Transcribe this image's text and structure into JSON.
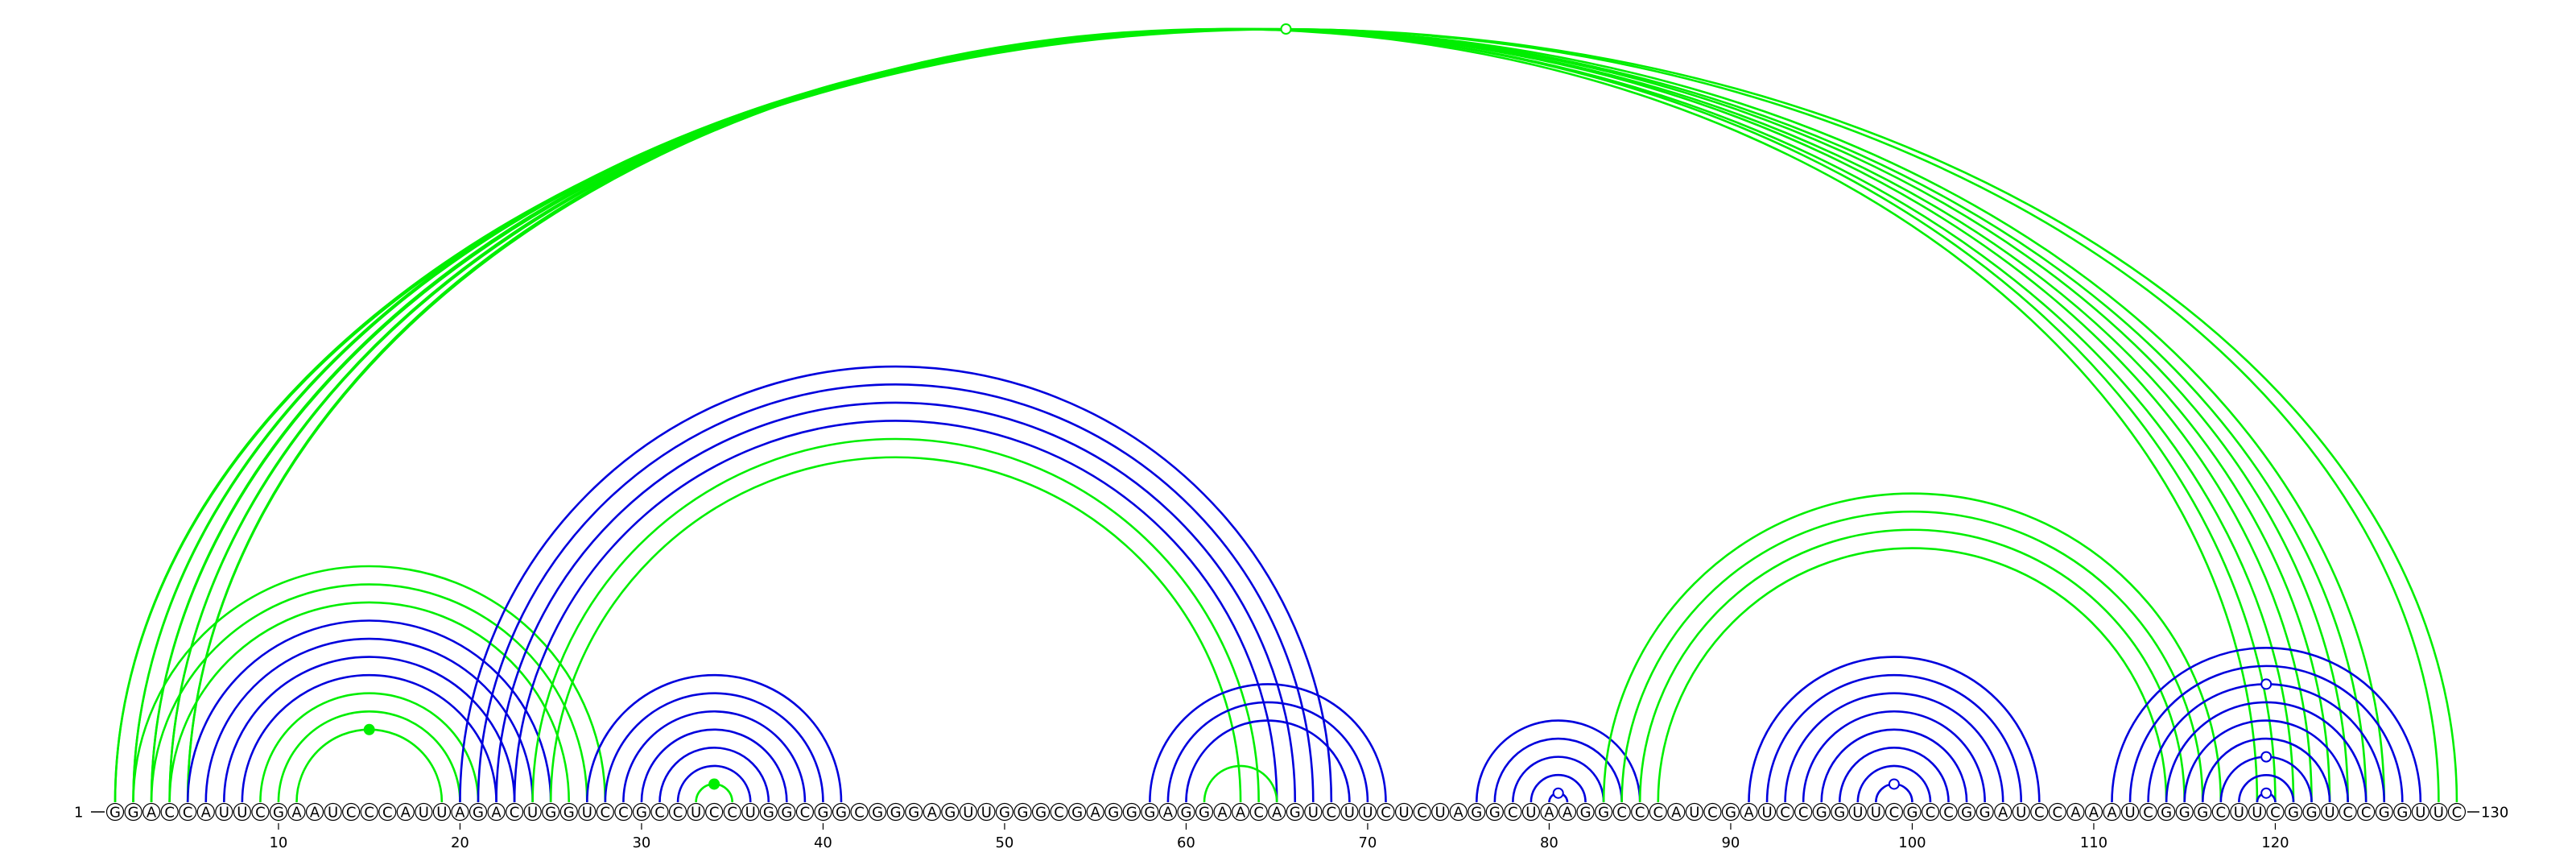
{
  "diagram": {
    "type": "rna-arc-diagram",
    "sequence": "GGACCAUUCGAAUCCCAUUAGACUGGUCCGCCUCCUGGCGGCGGGAGUUGGGCGAGGGAGGAACAGUCUUCUCUAGGCUAAGGCCCAUCGAUCCGGUUCGCCGGAUCCAAAUCGGGCUUCGGUCCGGUUC",
    "start_label": "1",
    "end_label": "130",
    "tick_labels": [
      "10",
      "20",
      "30",
      "40",
      "50",
      "60",
      "70",
      "80",
      "90",
      "100",
      "110",
      "120"
    ],
    "tick_positions": [
      10,
      20,
      30,
      40,
      50,
      60,
      70,
      80,
      90,
      100,
      110,
      120
    ],
    "colors": {
      "green": "#00ee00",
      "blue": "#0000dd",
      "outline": "#000000"
    },
    "arcs": [
      {
        "i": 1,
        "j": 130,
        "color": "green"
      },
      {
        "i": 1,
        "j": 129,
        "color": "green"
      },
      {
        "i": 2,
        "j": 126,
        "color": "green"
      },
      {
        "i": 2,
        "j": 125,
        "color": "green"
      },
      {
        "i": 3,
        "j": 124,
        "color": "green"
      },
      {
        "i": 3,
        "j": 123,
        "color": "green"
      },
      {
        "i": 4,
        "j": 122,
        "color": "green"
      },
      {
        "i": 4,
        "j": 121,
        "color": "green"
      },
      {
        "i": 5,
        "j": 120,
        "color": "green"
      },
      {
        "i": 5,
        "j": 119,
        "color": "green"
      },
      {
        "i": 2,
        "j": 28,
        "color": "green"
      },
      {
        "i": 3,
        "j": 27,
        "color": "green"
      },
      {
        "i": 4,
        "j": 26,
        "color": "green"
      },
      {
        "i": 5,
        "j": 25,
        "color": "blue"
      },
      {
        "i": 6,
        "j": 24,
        "color": "blue"
      },
      {
        "i": 7,
        "j": 23,
        "color": "blue"
      },
      {
        "i": 8,
        "j": 22,
        "color": "blue"
      },
      {
        "i": 9,
        "j": 21,
        "color": "green"
      },
      {
        "i": 10,
        "j": 20,
        "color": "green"
      },
      {
        "i": 11,
        "j": 19,
        "color": "green"
      },
      {
        "i": 20,
        "j": 68,
        "color": "blue"
      },
      {
        "i": 21,
        "j": 67,
        "color": "blue"
      },
      {
        "i": 22,
        "j": 66,
        "color": "blue"
      },
      {
        "i": 23,
        "j": 65,
        "color": "blue"
      },
      {
        "i": 24,
        "j": 64,
        "color": "green"
      },
      {
        "i": 25,
        "j": 63,
        "color": "green"
      },
      {
        "i": 27,
        "j": 41,
        "color": "blue"
      },
      {
        "i": 28,
        "j": 40,
        "color": "blue"
      },
      {
        "i": 29,
        "j": 39,
        "color": "blue"
      },
      {
        "i": 30,
        "j": 38,
        "color": "blue"
      },
      {
        "i": 31,
        "j": 37,
        "color": "blue"
      },
      {
        "i": 32,
        "j": 36,
        "color": "blue"
      },
      {
        "i": 33,
        "j": 35,
        "color": "green"
      },
      {
        "i": 58,
        "j": 71,
        "color": "blue"
      },
      {
        "i": 59,
        "j": 70,
        "color": "blue"
      },
      {
        "i": 60,
        "j": 69,
        "color": "blue"
      },
      {
        "i": 61,
        "j": 65,
        "color": "green"
      },
      {
        "i": 76,
        "j": 85,
        "color": "blue"
      },
      {
        "i": 77,
        "j": 84,
        "color": "blue"
      },
      {
        "i": 78,
        "j": 83,
        "color": "blue"
      },
      {
        "i": 79,
        "j": 82,
        "color": "blue"
      },
      {
        "i": 80,
        "j": 81,
        "color": "blue"
      },
      {
        "i": 83,
        "j": 117,
        "color": "green"
      },
      {
        "i": 84,
        "j": 116,
        "color": "green"
      },
      {
        "i": 85,
        "j": 115,
        "color": "green"
      },
      {
        "i": 86,
        "j": 114,
        "color": "green"
      },
      {
        "i": 91,
        "j": 107,
        "color": "blue"
      },
      {
        "i": 92,
        "j": 106,
        "color": "blue"
      },
      {
        "i": 93,
        "j": 105,
        "color": "blue"
      },
      {
        "i": 94,
        "j": 104,
        "color": "blue"
      },
      {
        "i": 95,
        "j": 103,
        "color": "blue"
      },
      {
        "i": 96,
        "j": 102,
        "color": "blue"
      },
      {
        "i": 97,
        "j": 101,
        "color": "blue"
      },
      {
        "i": 98,
        "j": 100,
        "color": "blue"
      },
      {
        "i": 111,
        "j": 128,
        "color": "blue"
      },
      {
        "i": 112,
        "j": 127,
        "color": "blue"
      },
      {
        "i": 113,
        "j": 126,
        "color": "blue"
      },
      {
        "i": 114,
        "j": 125,
        "color": "blue"
      },
      {
        "i": 115,
        "j": 124,
        "color": "blue"
      },
      {
        "i": 116,
        "j": 123,
        "color": "blue"
      },
      {
        "i": 117,
        "j": 122,
        "color": "blue"
      },
      {
        "i": 118,
        "j": 121,
        "color": "blue"
      },
      {
        "i": 119,
        "j": 120,
        "color": "blue"
      }
    ]
  }
}
